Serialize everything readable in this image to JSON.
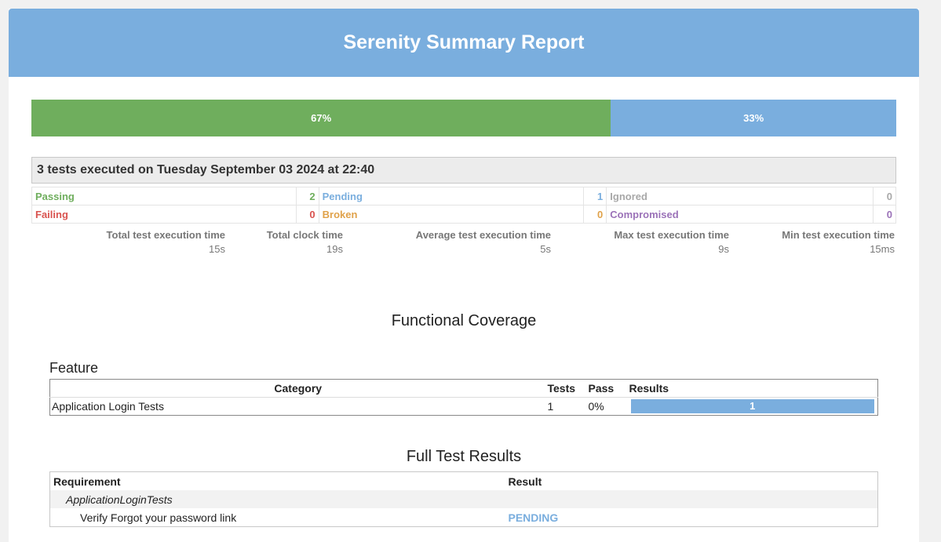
{
  "header": {
    "title": "Serenity Summary Report"
  },
  "progress": {
    "passing_label": "67%",
    "passing_fraction": 0.67,
    "passing_color": "#6fae5d",
    "pending_label": "33%",
    "pending_fraction": 0.33,
    "pending_color": "#7aaede"
  },
  "summary": {
    "executed_text": "3 tests executed on Tuesday September 03 2024 at 22:40",
    "counts": {
      "passing": {
        "label": "Passing",
        "value": "2"
      },
      "pending": {
        "label": "Pending",
        "value": "1"
      },
      "ignored": {
        "label": "Ignored",
        "value": "0"
      },
      "failing": {
        "label": "Failing",
        "value": "0"
      },
      "broken": {
        "label": "Broken",
        "value": "0"
      },
      "compromised": {
        "label": "Compromised",
        "value": "0"
      }
    },
    "times": [
      {
        "label": "Total test execution time",
        "value": "15s"
      },
      {
        "label": "Total clock time",
        "value": "19s"
      },
      {
        "label": "Average test execution time",
        "value": "5s"
      },
      {
        "label": "Max test execution time",
        "value": "9s"
      },
      {
        "label": "Min test execution time",
        "value": "15ms"
      }
    ]
  },
  "functional_coverage": {
    "title": "Functional Coverage",
    "feature_label": "Feature",
    "columns": [
      "Category",
      "Tests",
      "Pass",
      "Results"
    ],
    "rows": [
      {
        "category": "Application Login Tests",
        "tests": "1",
        "pass": "0%",
        "results": "1"
      }
    ]
  },
  "full_results": {
    "title": "Full Test Results",
    "columns": [
      "Requirement",
      "Result"
    ],
    "group": "ApplicationLoginTests",
    "tests": [
      {
        "name": "Verify Forgot your password link",
        "result": "PENDING"
      }
    ]
  }
}
